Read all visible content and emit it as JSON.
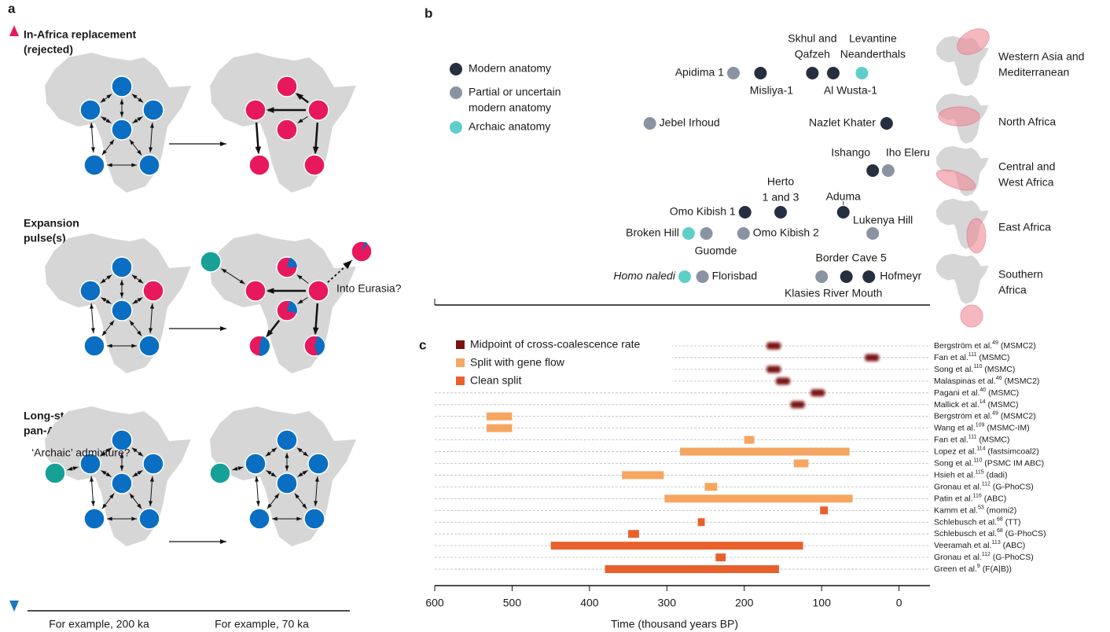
{
  "panel_a": {
    "label": "a",
    "scenarios": [
      {
        "title": [
          "In-Africa replacement",
          "(rejected)"
        ]
      },
      {
        "title": [
          "Expansion",
          "pulse(s)"
        ],
        "note": "Into Eurasia?"
      },
      {
        "title": [
          "Long-standing",
          "pan-African connectivity"
        ],
        "note": "‘Archaic’ admixture?"
      }
    ],
    "time_labels": [
      "For example, 200 ka",
      "For example, 70 ka"
    ]
  },
  "panel_b": {
    "label": "b",
    "legend": [
      {
        "text": [
          "Modern anatomy"
        ],
        "color": "#252f40"
      },
      {
        "text": [
          "Partial or uncertain",
          "modern anatomy"
        ],
        "color": "#8a93a3"
      },
      {
        "text": [
          "Archaic anatomy"
        ],
        "color": "#5ecfc8"
      }
    ],
    "regions": [
      {
        "name": [
          "Western Asia and",
          "Mediterranean"
        ]
      },
      {
        "name": [
          "North Africa"
        ]
      },
      {
        "name": [
          "Central and",
          "West Africa"
        ]
      },
      {
        "name": [
          "East Africa"
        ]
      },
      {
        "name": [
          "Southern",
          "Africa"
        ]
      }
    ],
    "sites": [
      {
        "name": [
          "Apidima 1"
        ],
        "time": 214,
        "anatomy": 1
      },
      {
        "name": [
          "Misliya-1"
        ],
        "time": 179,
        "anatomy": 0
      },
      {
        "name": [
          "Skhul and",
          "Qafzeh"
        ],
        "time": 112,
        "anatomy": 0
      },
      {
        "name": [
          "Al Wusta-1"
        ],
        "time": 85,
        "anatomy": 0
      },
      {
        "name": [
          "Levantine",
          "Neanderthals"
        ],
        "time": 48,
        "anatomy": 2
      },
      {
        "name": [
          "Jebel Irhoud"
        ],
        "time": 322,
        "anatomy": 1
      },
      {
        "name": [
          "Nazlet Khater"
        ],
        "time": 16,
        "anatomy": 0
      },
      {
        "name": [
          "Ishango"
        ],
        "time": 34,
        "anatomy": 0
      },
      {
        "name": [
          "Iho Eleru"
        ],
        "time": 14,
        "anatomy": 1
      },
      {
        "name": [
          "Herto",
          "1 and 3"
        ],
        "time": 153,
        "anatomy": 0
      },
      {
        "name": [
          "Omo Kibish 1"
        ],
        "time": 199,
        "anatomy": 0
      },
      {
        "name": [
          "Aduma"
        ],
        "time": 72,
        "anatomy": 0
      },
      {
        "name": [
          "Broken Hill"
        ],
        "time": 272,
        "anatomy": 2
      },
      {
        "name": [
          "Guomde"
        ],
        "time": 249,
        "anatomy": 1
      },
      {
        "name": [
          "Omo Kibish 2"
        ],
        "time": 201,
        "anatomy": 1
      },
      {
        "name": [
          "Lukenya Hill"
        ],
        "time": 34,
        "anatomy": 1
      },
      {
        "name": [
          "Homo naledi"
        ],
        "time": 277,
        "anatomy": 2
      },
      {
        "name": [
          "Florisbad"
        ],
        "time": 254,
        "anatomy": 1
      },
      {
        "name": [
          "Klasies River Mouth"
        ],
        "time": 100,
        "anatomy": 1
      },
      {
        "name": [
          "Border Cave 5"
        ],
        "time": 68,
        "anatomy": 0
      },
      {
        "name": [
          "Hofmeyr"
        ],
        "time": 39,
        "anatomy": 0
      }
    ]
  },
  "panel_c": {
    "label": "c",
    "xlabel": "Time (thousand years BP)",
    "xlim": [
      600,
      -40
    ],
    "xticks": [
      600,
      500,
      400,
      300,
      200,
      100,
      0
    ],
    "legend": [
      {
        "text": "Midpoint of cross-coalescence rate",
        "color": "#7b1212"
      },
      {
        "text": "Split with gene flow",
        "color": "#f6a660"
      },
      {
        "text": "Clean split",
        "color": "#e8602c"
      }
    ],
    "studies": [
      {
        "name": "Bergström et al.",
        "ref": "49",
        "method": " (MSMC2)",
        "kind": 0,
        "range": [
          162
        ]
      },
      {
        "name": "Fan et al.",
        "ref": "111",
        "method": " (MSMC)",
        "kind": 0,
        "range": [
          35
        ]
      },
      {
        "name": "Song et al.",
        "ref": "110",
        "method": " (MSMC)",
        "kind": 0,
        "range": [
          162
        ]
      },
      {
        "name": "Malaspinas et al.",
        "ref": "46",
        "method": " (MSMC2)",
        "kind": 0,
        "range": [
          150
        ]
      },
      {
        "name": "Pagani et al.",
        "ref": "40",
        "method": " (MSMC)",
        "kind": 0,
        "range": [
          105
        ]
      },
      {
        "name": "Mallick et al.",
        "ref": "14",
        "method": " (MSMC)",
        "kind": 0,
        "range": [
          131
        ]
      },
      {
        "name": "Bergström et al.",
        "ref": "49",
        "method": " (MSMC2)",
        "kind": 1,
        "range": [
          533,
          500
        ]
      },
      {
        "name": "Wang et al.",
        "ref": "109",
        "method": " (MSMC-IM)",
        "kind": 1,
        "range": [
          533,
          500
        ]
      },
      {
        "name": "Fan et al.",
        "ref": "111",
        "method": " (MSMC)",
        "kind": 1,
        "range": [
          200,
          187
        ]
      },
      {
        "name": "Lopez et al.",
        "ref": "114",
        "method": " (fastsimcoal2)",
        "kind": 1,
        "range": [
          283,
          64
        ]
      },
      {
        "name": "Song et al.",
        "ref": "110",
        "method": " (PSMC IM ABC)",
        "kind": 1,
        "range": [
          136,
          117
        ]
      },
      {
        "name": "Hsieh et al.",
        "ref": "115",
        "method": " (dadi)",
        "kind": 1,
        "range": [
          358,
          304
        ]
      },
      {
        "name": "Gronau et al.",
        "ref": "112",
        "method": " (G-PhoCS)",
        "kind": 1,
        "range": [
          251,
          235
        ]
      },
      {
        "name": "Patin et al.",
        "ref": "116",
        "method": " (ABC)",
        "kind": 1,
        "range": [
          303,
          60
        ]
      },
      {
        "name": "Kamm et al.",
        "ref": "53",
        "method": " (momi2)",
        "kind": 2,
        "range": [
          102,
          92
        ]
      },
      {
        "name": "Schlebusch et al.",
        "ref": "68",
        "method": " (TT)",
        "kind": 2,
        "range": [
          260,
          251
        ]
      },
      {
        "name": "Schlebusch et al.",
        "ref": "68",
        "method": " (G-PhoCS)",
        "kind": 2,
        "range": [
          350,
          336
        ]
      },
      {
        "name": "Veeramah et al.",
        "ref": "113",
        "method": " (ABC)",
        "kind": 2,
        "range": [
          450,
          124
        ]
      },
      {
        "name": "Gronau et al.",
        "ref": "112",
        "method": " (G-PhoCS)",
        "kind": 2,
        "range": [
          237,
          224
        ]
      },
      {
        "name": "Green et al.",
        "ref": "9",
        "method": " (F(A|B))",
        "kind": 2,
        "range": [
          380,
          155
        ]
      }
    ]
  }
}
